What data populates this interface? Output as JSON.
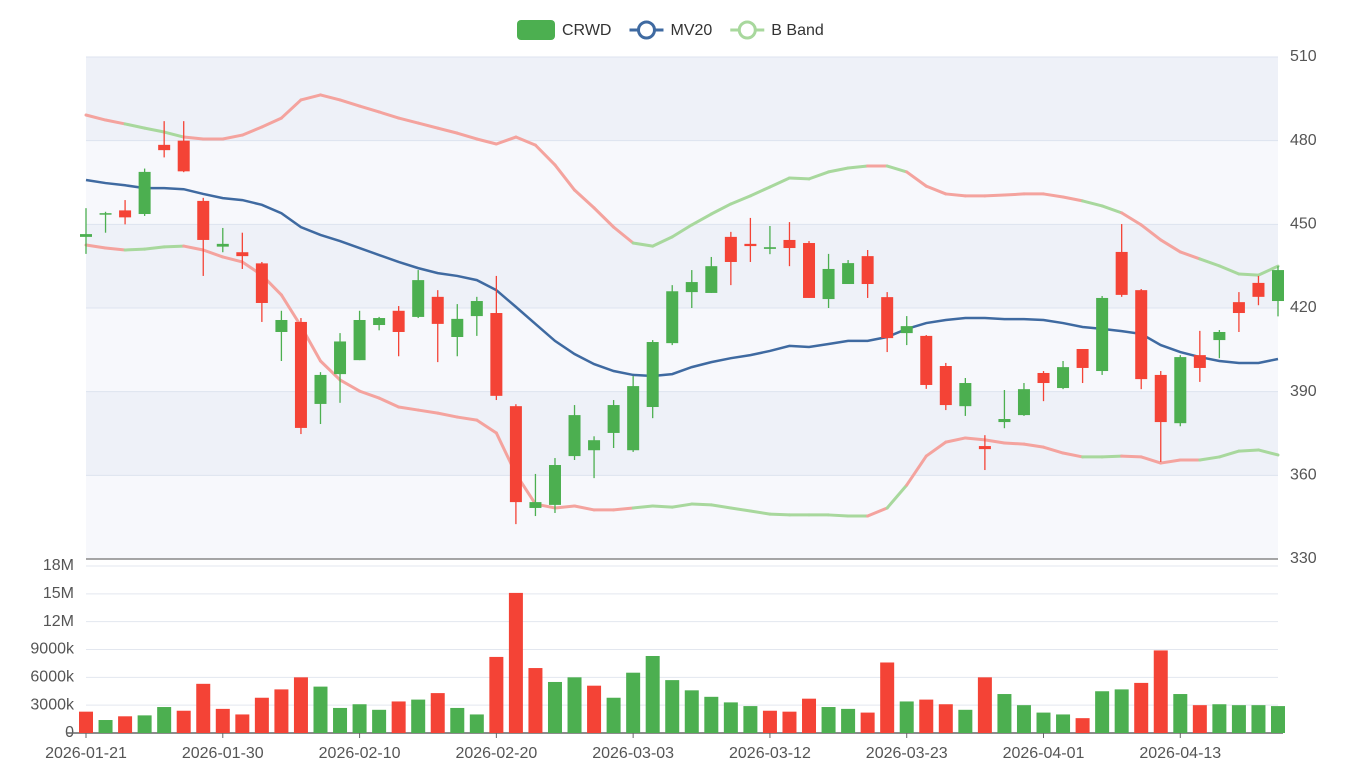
{
  "chart_data": [
    {
      "type": "candlestick",
      "categories": [
        "2026-01-21",
        null,
        null,
        null,
        null,
        null,
        null,
        "2026-01-30",
        null,
        null,
        null,
        null,
        null,
        null,
        "2026-02-10",
        null,
        null,
        null,
        null,
        null,
        null,
        "2026-02-20",
        null,
        null,
        null,
        null,
        null,
        null,
        "2026-03-03",
        null,
        null,
        null,
        null,
        null,
        null,
        "2026-03-12",
        null,
        null,
        null,
        null,
        null,
        null,
        "2026-03-23",
        null,
        null,
        null,
        null,
        null,
        null,
        "2026-04-01",
        null,
        null,
        null,
        null,
        null,
        null,
        "2026-04-13",
        null,
        null,
        null,
        null,
        null
      ],
      "series": [
        {
          "name": "CRWD",
          "type": "candlestick",
          "up_color": "#4caf50",
          "down_color": "#f44336",
          "open": [
            445.5,
            453.5,
            455,
            453.7,
            478.5,
            480,
            458.4,
            442,
            440,
            436,
            411.4,
            415,
            385.6,
            396.3,
            401.3,
            413.9,
            419,
            416.8,
            424,
            409.6,
            417.1,
            418.2,
            384.8,
            348.3,
            349.4,
            366.9,
            369,
            375.2,
            369,
            384.5,
            407.4,
            425.7,
            425.4,
            445.5,
            443,
            441.2,
            444.4,
            443.3,
            423.2,
            428.6,
            438.6,
            423.9,
            411,
            410,
            399.2,
            384.8,
            370.5,
            379.1,
            381.6,
            396.7,
            391.3,
            405.3,
            397.4,
            440.1,
            426.4,
            396,
            378.7,
            403.1,
            408.5,
            422.1,
            429,
            422.5
          ],
          "high": [
            455.8,
            454.5,
            458.7,
            470,
            487,
            487,
            459.5,
            448.7,
            447,
            436.5,
            419,
            416.4,
            397,
            411,
            419,
            416.8,
            420.7,
            433.6,
            426.4,
            421.4,
            424,
            431.5,
            385.5,
            360.5,
            366.2,
            385.2,
            374,
            387,
            395.6,
            408.5,
            428.2,
            433.6,
            438.3,
            447.3,
            452.3,
            449.4,
            450.8,
            444,
            439.4,
            437.2,
            440.8,
            425.7,
            417.1,
            410.3,
            400.3,
            394.9,
            374.4,
            390.6,
            393.1,
            397.4,
            401,
            405.3,
            424.3,
            450.1,
            426.8,
            397.4,
            403.1,
            411.8,
            412.1,
            425.7,
            431.5,
            435
          ],
          "low": [
            439.4,
            447,
            450,
            453,
            474,
            468.7,
            431.5,
            440,
            434,
            415,
            401,
            374.8,
            378.4,
            386,
            401.3,
            412,
            402.7,
            416.4,
            400.6,
            402.7,
            410,
            387,
            342.5,
            345.4,
            346.5,
            365.5,
            359,
            369.8,
            368.4,
            380.5,
            406.7,
            420,
            425.4,
            428.2,
            436.5,
            439.3,
            435,
            423.6,
            420,
            428.6,
            423.6,
            404.2,
            406.7,
            391,
            383.4,
            381.3,
            361.9,
            376.9,
            381.3,
            386.6,
            390.9,
            393.1,
            396,
            424,
            390.9,
            364.8,
            377.6,
            393.5,
            402,
            411.4,
            421,
            417
          ],
          "close": [
            446.5,
            454,
            452.5,
            468.8,
            476.6,
            469,
            444.4,
            443,
            438.6,
            421.8,
            415.7,
            377,
            396,
            408,
            415.7,
            416.4,
            411.4,
            430,
            414.3,
            416.1,
            422.5,
            388.5,
            350.4,
            350.4,
            363.7,
            381.6,
            372.6,
            385.2,
            392,
            407.8,
            426,
            429.3,
            435,
            436.5,
            442.2,
            441.8,
            441.5,
            423.6,
            434,
            436.1,
            428.6,
            409.2,
            413.5,
            392.4,
            385.2,
            393.1,
            369.4,
            380.2,
            390.9,
            393.1,
            398.8,
            398.5,
            423.6,
            424.7,
            394.5,
            379.1,
            402.4,
            398.5,
            411.4,
            418.2,
            424,
            433.6
          ]
        },
        {
          "name": "MV20",
          "type": "line",
          "color": "#3f6aa1",
          "values": [
            465.9,
            464.8,
            464,
            463,
            463,
            462.6,
            460.9,
            459.4,
            458.7,
            457,
            454,
            449,
            446.2,
            444,
            441.5,
            439,
            436.5,
            434.3,
            432.5,
            431.5,
            430,
            426.4,
            420.4,
            414.3,
            408.2,
            403.5,
            399.9,
            397.4,
            396,
            395.6,
            396.3,
            398.8,
            400.6,
            402,
            403.1,
            404.6,
            406.4,
            406,
            407.1,
            408.2,
            408.2,
            409.6,
            412.5,
            414.6,
            415.7,
            416.4,
            416.4,
            416,
            416,
            415.7,
            414.6,
            413.2,
            412.5,
            411.7,
            410.7,
            406.7,
            404.2,
            402.4,
            401,
            400.3,
            400.3,
            401.7
          ]
        },
        {
          "name": "B Band",
          "type": "band",
          "color": "#a8d89d",
          "down_color": "#f4a39e",
          "upper": [
            489.2,
            487.4,
            486,
            484.5,
            483.1,
            481.3,
            480.6,
            480.6,
            482,
            484.9,
            488.1,
            494.6,
            496.4,
            494.6,
            492.4,
            490.3,
            488.1,
            486.3,
            484.5,
            482.7,
            480.6,
            478.8,
            481.3,
            478.4,
            471.3,
            462.3,
            455.9,
            449,
            443.3,
            442.2,
            445.5,
            449.8,
            453.7,
            457.3,
            460.2,
            463.4,
            466.6,
            466.3,
            468.8,
            470.2,
            470.9,
            470.9,
            468.8,
            463.7,
            460.9,
            460.2,
            460.2,
            460.5,
            460.9,
            460.9,
            459.8,
            458.4,
            456.6,
            454.1,
            449.8,
            444.4,
            440.1,
            437.6,
            435.1,
            432.2,
            431.8,
            435
          ],
          "lower": [
            442.6,
            441.5,
            440.8,
            441.1,
            441.9,
            442.2,
            440.8,
            438.3,
            436.5,
            431.8,
            424.7,
            413.5,
            401,
            394.2,
            390.2,
            387.7,
            384.5,
            383.4,
            382.3,
            380.9,
            379.8,
            375.2,
            360.5,
            349.7,
            348.3,
            349,
            347.6,
            347.6,
            348.3,
            349,
            348.6,
            349.7,
            349.4,
            348.3,
            347.2,
            346.1,
            345.8,
            345.8,
            345.8,
            345.4,
            345.4,
            348.3,
            356.5,
            366.9,
            371.9,
            373.4,
            372.7,
            371.6,
            371.2,
            370.1,
            368,
            366.6,
            366.6,
            366.9,
            366.6,
            364.4,
            365.5,
            365.5,
            366.6,
            368.7,
            369.1,
            367.3
          ]
        }
      ],
      "ylim": [
        330,
        510
      ],
      "yticks": [
        330,
        360,
        390,
        420,
        450,
        480,
        510
      ],
      "y_axis_side": "right",
      "grid": true,
      "legend": "top"
    },
    {
      "type": "bar",
      "up_color": "#4caf50",
      "down_color": "#f44336",
      "values": [
        2300000,
        1400000,
        1800000,
        1900000,
        2800000,
        2400000,
        5300000,
        2600000,
        2000000,
        3800000,
        4700000,
        6000000,
        5000000,
        2700000,
        3100000,
        2500000,
        3400000,
        3600000,
        4300000,
        2700000,
        2000000,
        8200000,
        15100000,
        7000000,
        5500000,
        6000000,
        5100000,
        3800000,
        6500000,
        8300000,
        5700000,
        4600000,
        3900000,
        3300000,
        2900000,
        2400000,
        2300000,
        3700000,
        2800000,
        2600000,
        2200000,
        7600000,
        3400000,
        3600000,
        3100000,
        2500000,
        6000000,
        4200000,
        3000000,
        2200000,
        2000000,
        1600000,
        4500000,
        4700000,
        5400000,
        8900000,
        4200000,
        3000000,
        3100000,
        3000000,
        3000000,
        2900000
      ],
      "ylim": [
        0,
        18000000
      ],
      "yticks": [
        0,
        {
          "value": 3000000,
          "label": "3000k"
        },
        {
          "value": 6000000,
          "label": "6000k"
        },
        {
          "value": 9000000,
          "label": "9000k"
        },
        {
          "value": 12000000,
          "label": "12M"
        },
        {
          "value": 15000000,
          "label": "15M"
        },
        {
          "value": 18000000,
          "label": "18M"
        }
      ],
      "y_axis_side": "left",
      "grid": true
    }
  ]
}
